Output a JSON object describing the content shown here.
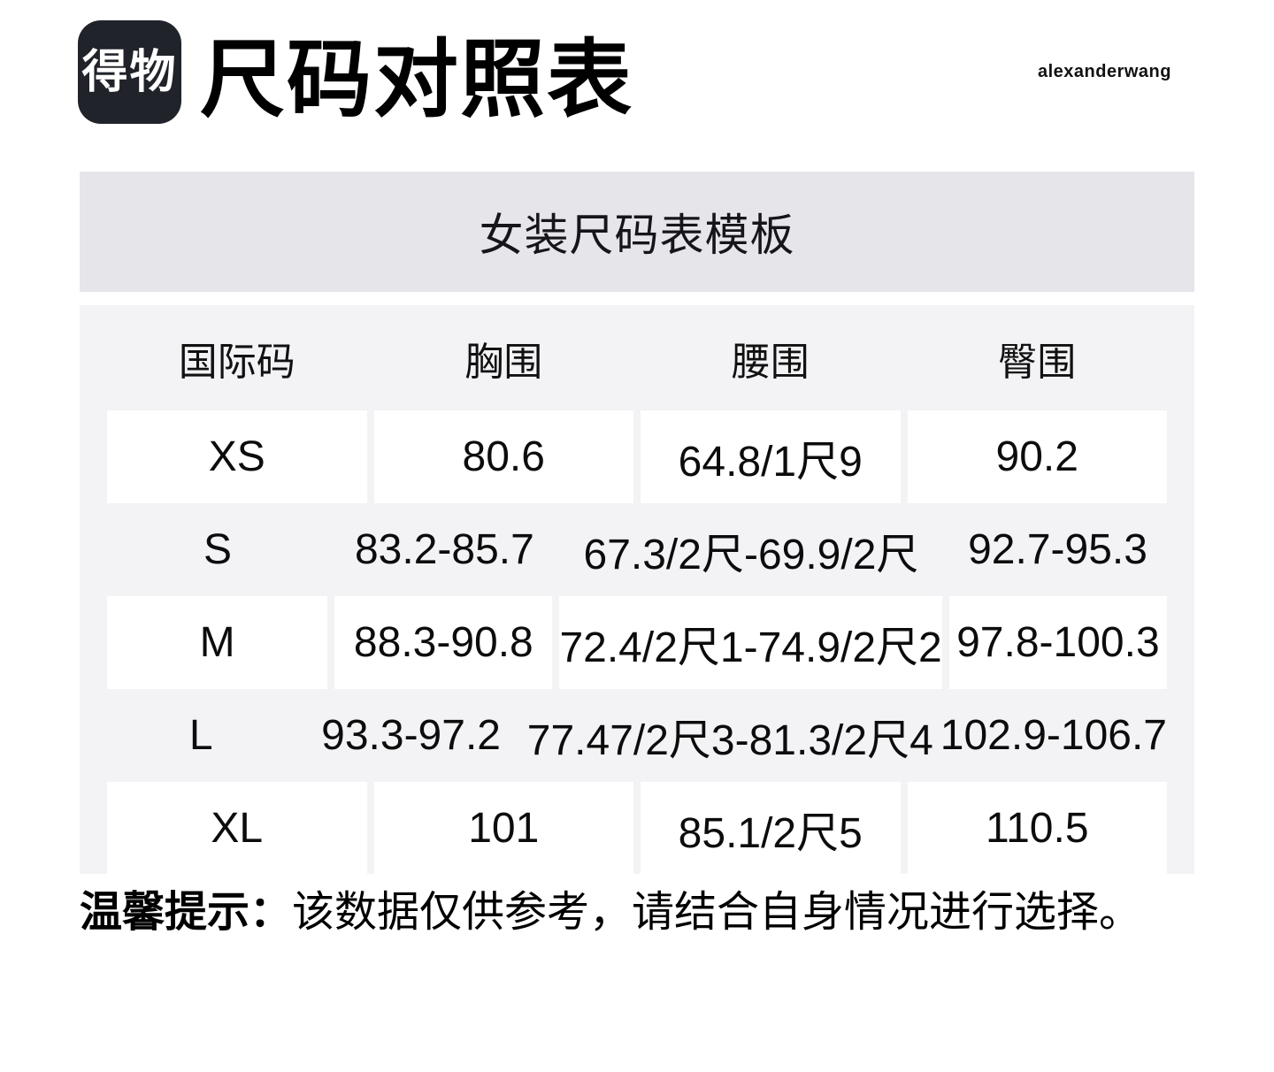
{
  "header": {
    "logo_text": "得物",
    "title": "尺码对照表",
    "brand": "alexanderwang"
  },
  "colors": {
    "logo_bg": "#20232a",
    "logo_text": "#ffffff",
    "title_band_bg": "#e5e5ea",
    "table_bg": "#f3f3f6",
    "cell_bg": "#ffffff",
    "text": "#0d0d0d"
  },
  "table": {
    "title": "女装尺码表模板",
    "columns": [
      "国际码",
      "胸围",
      "腰围",
      "臀围"
    ],
    "rows": [
      {
        "size": "XS",
        "bust": "80.6",
        "waist": "64.8/1尺9",
        "hip": "90.2"
      },
      {
        "size": "S",
        "bust": "83.2-85.7",
        "waist": "67.3/2尺-69.9/2尺",
        "hip": "92.7-95.3"
      },
      {
        "size": "M",
        "bust": "88.3-90.8",
        "waist": "72.4/2尺1-74.9/2尺2",
        "hip": "97.8-100.3"
      },
      {
        "size": "L",
        "bust": "93.3-97.2",
        "waist": "77.47/2尺3-81.3/2尺4",
        "hip": "102.9-106.7"
      },
      {
        "size": "XL",
        "bust": "101",
        "waist": "85.1/2尺5",
        "hip": "110.5"
      }
    ]
  },
  "footer": {
    "label": "温馨提示：",
    "text": "该数据仅供参考，请结合自身情况进行选择。"
  }
}
